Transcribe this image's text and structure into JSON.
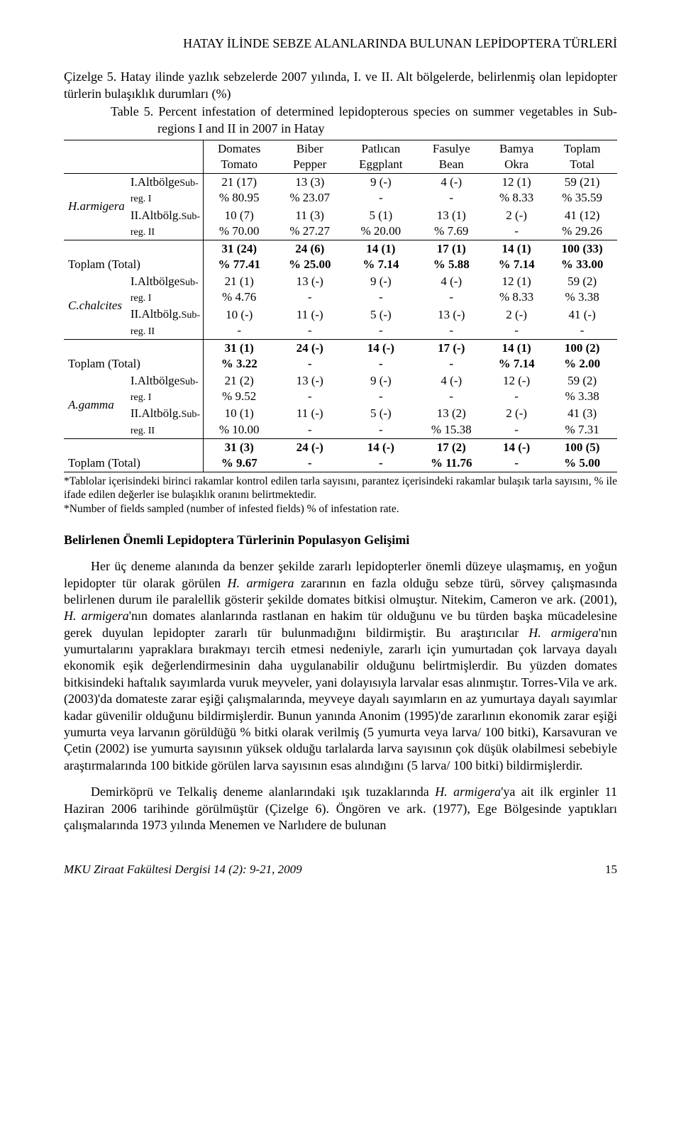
{
  "header": {
    "running_title": "HATAY İLİNDE SEBZE ALANLARINDA BULUNAN LEPİDOPTERA TÜRLERİ"
  },
  "table": {
    "caption_tr": "Çizelge 5. Hatay ilinde yazlık sebzelerde 2007 yılında, I. ve II. Alt bölgelerde, belirlenmiş olan lepidopter türlerin bulaşıklık durumları (%)",
    "caption_en": "Table 5. Percent infestation of  determined lepidopterous species on summer vegetables in Sub-regions I and II in 2007 in Hatay",
    "columns": [
      {
        "l1": "Domates",
        "l2": "Tomato"
      },
      {
        "l1": "Biber",
        "l2": "Pepper"
      },
      {
        "l1": "Patlıcan",
        "l2": "Eggplant"
      },
      {
        "l1": "Fasulye",
        "l2": "Bean"
      },
      {
        "l1": "Bamya",
        "l2": "Okra"
      },
      {
        "l1": "Toplam",
        "l2": "Total"
      }
    ],
    "species": [
      {
        "name": "H.armigera",
        "rows": [
          {
            "sub_l1": "I.Altbölge",
            "sub_l2": "Sub-reg. I",
            "cells": [
              {
                "t": "21 (17)",
                "b": "% 80.95"
              },
              {
                "t": "13 (3)",
                "b": "% 23.07"
              },
              {
                "t": "9 (-)",
                "b": "-"
              },
              {
                "t": "4 (-)",
                "b": "-"
              },
              {
                "t": "12 (1)",
                "b": "% 8.33"
              },
              {
                "t": "59 (21)",
                "b": "% 35.59"
              }
            ]
          },
          {
            "sub_l1": "II.Altbölg.",
            "sub_l2": "Sub-reg. II",
            "cells": [
              {
                "t": "10 (7)",
                "b": "% 70.00"
              },
              {
                "t": "11 (3)",
                "b": "% 27.27"
              },
              {
                "t": "5 (1)",
                "b": "% 20.00"
              },
              {
                "t": "13 (1)",
                "b": "% 7.69"
              },
              {
                "t": "2 (-)",
                "b": "-"
              },
              {
                "t": "41 (12)",
                "b": "% 29.26"
              }
            ]
          }
        ],
        "total": {
          "label": "Toplam (Total)",
          "cells": [
            {
              "t": "31 (24)",
              "b": "% 77.41"
            },
            {
              "t": "24 (6)",
              "b": "% 25.00"
            },
            {
              "t": "14 (1)",
              "b": "% 7.14"
            },
            {
              "t": "17 (1)",
              "b": "% 5.88"
            },
            {
              "t": "14 (1)",
              "b": "% 7.14"
            },
            {
              "t": "100 (33)",
              "b": "% 33.00"
            }
          ]
        }
      },
      {
        "name": "C.chalcites",
        "rows": [
          {
            "sub_l1": "I.Altbölge",
            "sub_l2": "Sub-reg. I",
            "cells": [
              {
                "t": "21 (1)",
                "b": "% 4.76"
              },
              {
                "t": "13 (-)",
                "b": "-"
              },
              {
                "t": "9 (-)",
                "b": "-"
              },
              {
                "t": "4 (-)",
                "b": "-"
              },
              {
                "t": "12 (1)",
                "b": "% 8.33"
              },
              {
                "t": "59 (2)",
                "b": "% 3.38"
              }
            ]
          },
          {
            "sub_l1": "II.Altbölg.",
            "sub_l2": "Sub-reg. II",
            "cells": [
              {
                "t": "10 (-)",
                "b": "-"
              },
              {
                "t": "11 (-)",
                "b": "-"
              },
              {
                "t": "5 (-)",
                "b": "-"
              },
              {
                "t": "13 (-)",
                "b": "-"
              },
              {
                "t": "2 (-)",
                "b": "-"
              },
              {
                "t": "41 (-)",
                "b": "-"
              }
            ]
          }
        ],
        "total": {
          "label": "Toplam (Total)",
          "cells": [
            {
              "t": "31 (1)",
              "b": "% 3.22"
            },
            {
              "t": "24 (-)",
              "b": "-"
            },
            {
              "t": "14 (-)",
              "b": "-"
            },
            {
              "t": "17 (-)",
              "b": "-"
            },
            {
              "t": "14 (1)",
              "b": "% 7.14"
            },
            {
              "t": "100 (2)",
              "b": "% 2.00"
            }
          ]
        }
      },
      {
        "name": "A.gamma",
        "rows": [
          {
            "sub_l1": "I.Altbölge",
            "sub_l2": "Sub-reg. I",
            "cells": [
              {
                "t": "21 (2)",
                "b": "% 9.52"
              },
              {
                "t": "13 (-)",
                "b": "-"
              },
              {
                "t": "9 (-)",
                "b": "-"
              },
              {
                "t": "4 (-)",
                "b": "-"
              },
              {
                "t": "12 (-)",
                "b": "-"
              },
              {
                "t": "59 (2)",
                "b": "% 3.38"
              }
            ]
          },
          {
            "sub_l1": "II.Altbölg.",
            "sub_l2": "Sub-reg. II",
            "cells": [
              {
                "t": "10 (1)",
                "b": "% 10.00"
              },
              {
                "t": "11 (-)",
                "b": "-"
              },
              {
                "t": "5 (-)",
                "b": "-"
              },
              {
                "t": "13 (2)",
                "b": "% 15.38"
              },
              {
                "t": "2 (-)",
                "b": "-"
              },
              {
                "t": "41 (3)",
                "b": "% 7.31"
              }
            ]
          }
        ],
        "total": {
          "label": "Toplam (Total)",
          "cells": [
            {
              "t": "31 (3)",
              "b": "% 9.67"
            },
            {
              "t": "24 (-)",
              "b": "-"
            },
            {
              "t": "14 (-)",
              "b": "-"
            },
            {
              "t": "17 (2)",
              "b": "% 11.76"
            },
            {
              "t": "14 (-)",
              "b": "-"
            },
            {
              "t": "100 (5)",
              "b": "% 5.00"
            }
          ]
        }
      }
    ],
    "footnote_tr": "*Tablolar içerisindeki birinci rakamlar kontrol edilen tarla sayısını, parantez içerisindeki rakamlar bulaşık tarla sayısını,  % ile ifade edilen değerler ise bulaşıklık oranını belirtmektedir.",
    "footnote_en": "*Number of fields sampled (number of infested fields) % of infestation rate."
  },
  "section": {
    "heading": "Belirlenen Önemli Lepidoptera Türlerinin Populasyon Gelişimi",
    "para1_pre": "Her üç deneme alanında da benzer şekilde zararlı lepidopterler önemli düzeye ulaşmamış, en yoğun lepidopter tür olarak görülen ",
    "para1_it1": "H. armigera",
    "para1_mid1": " zararının en fazla olduğu sebze türü, sörvey çalışmasında belirlenen durum ile paralellik gösterir şekilde domates bitkisi olmuştur. Nitekim, Cameron ve ark. (2001), ",
    "para1_it2": "H. armigera",
    "para1_mid2": "'nın domates alanlarında rastlanan en hakim tür olduğunu ve bu türden başka mücadelesine gerek duyulan lepidopter zararlı tür bulunmadığını bildirmiştir. Bu araştırıcılar ",
    "para1_it3": "H. armigera",
    "para1_end": "'nın yumurtalarını yapraklara bırakmayı tercih etmesi nedeniyle, zararlı için yumurtadan çok larvaya dayalı ekonomik eşik değerlendirmesinin daha uygulanabilir olduğunu belirtmişlerdir. Bu yüzden domates bitkisindeki haftalık sayımlarda vuruk meyveler, yani dolayısıyla larvalar esas alınmıştır. Torres-Vila ve ark. (2003)'da domateste zarar eşiği çalışmalarında, meyveye dayalı sayımların en az yumurtaya dayalı sayımlar kadar güvenilir olduğunu bildirmişlerdir. Bunun yanında Anonim (1995)'de zararlının ekonomik zarar eşiği yumurta veya larvanın görüldüğü % bitki olarak verilmiş (5 yumurta veya larva/ 100 bitki), Karsavuran ve Çetin (2002) ise yumurta sayısının yüksek olduğu tarlalarda larva sayısının çok düşük olabilmesi sebebiyle araştırmalarında 100 bitkide görülen larva sayısının esas alındığını (5 larva/ 100 bitki) bildirmişlerdir.",
    "para2_pre": "Demirköprü ve Telkaliş deneme  alanlarındaki  ışık tuzaklarında ",
    "para2_it1": "H. armigera",
    "para2_end": "'ya ait ilk erginler 11 Haziran 2006 tarihinde görülmüştür (Çizelge 6). Öngören ve ark. (1977), Ege Bölgesinde yaptıkları çalışmalarında 1973 yılında Menemen ve Narlıdere de bulunan"
  },
  "footer": {
    "journal": "MKU Ziraat Fakültesi Dergisi 14 (2): 9-21, 2009",
    "page": "15"
  }
}
